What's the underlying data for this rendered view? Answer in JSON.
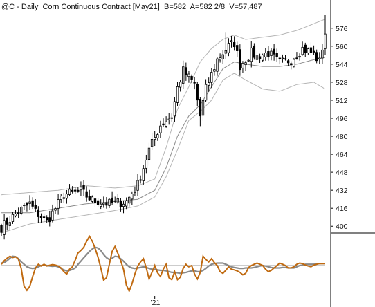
{
  "header": {
    "symbol": "@C",
    "interval": "Daily",
    "name": "Corn Continuous Contract [May21]",
    "bid": "B=582",
    "ask": "A=582 2/8",
    "volume": "V=57,487"
  },
  "colors": {
    "candle": "#000000",
    "band_mid": "#8a8a8a",
    "band_outer": "#b5b5b5",
    "osc_fast": "#c06a10",
    "osc_slow": "#8a8a8a",
    "osc_zero": "#9a9a9a",
    "frame": "#000000"
  },
  "chart_data": [
    {
      "type": "candlestick",
      "title": "",
      "xlabel": "",
      "ylabel": "",
      "y_axis_side": "right",
      "ylim": [
        394,
        590
      ],
      "ytick_labels": [
        "576",
        "560",
        "544",
        "528",
        "512",
        "496",
        "480",
        "464",
        "448",
        "432",
        "416",
        "400"
      ],
      "ytick_values": [
        576,
        560,
        544,
        528,
        512,
        496,
        480,
        464,
        448,
        432,
        416,
        400
      ],
      "x_tick_labels": [
        "'21"
      ],
      "x_tick_index": 54,
      "close_start": 399,
      "bars": 115,
      "close_anchors": [
        [
          0,
          399
        ],
        [
          6,
          413
        ],
        [
          10,
          420
        ],
        [
          12,
          413
        ],
        [
          16,
          404
        ],
        [
          22,
          428
        ],
        [
          28,
          431
        ],
        [
          32,
          423
        ],
        [
          38,
          420
        ],
        [
          44,
          422
        ],
        [
          48,
          437
        ],
        [
          52,
          468
        ],
        [
          56,
          490
        ],
        [
          60,
          498
        ],
        [
          62,
          523
        ],
        [
          64,
          538
        ],
        [
          68,
          526
        ],
        [
          70,
          498
        ],
        [
          72,
          522
        ],
        [
          76,
          548
        ],
        [
          80,
          560
        ],
        [
          82,
          563
        ],
        [
          84,
          543
        ],
        [
          88,
          554
        ],
        [
          90,
          551
        ],
        [
          94,
          554
        ],
        [
          98,
          545
        ],
        [
          102,
          548
        ],
        [
          106,
          558
        ],
        [
          110,
          553
        ],
        [
          112,
          546
        ],
        [
          114,
          572
        ]
      ],
      "wick_extremes": [
        {
          "index": 114,
          "high": 588
        },
        {
          "index": 79,
          "high": 572
        },
        {
          "index": 70,
          "low": 489
        }
      ],
      "bands": {
        "mid_offset_start": -14,
        "outer_offset_start": 40,
        "inner_points": [
          [
            0,
            394
          ],
          [
            10,
            402
          ],
          [
            20,
            406
          ],
          [
            30,
            410
          ],
          [
            40,
            414
          ],
          [
            48,
            418
          ],
          [
            54,
            426
          ],
          [
            58,
            444
          ],
          [
            62,
            468
          ],
          [
            66,
            494
          ],
          [
            70,
            502
          ],
          [
            74,
            512
          ],
          [
            78,
            530
          ],
          [
            82,
            536
          ],
          [
            86,
            530
          ],
          [
            92,
            522
          ],
          [
            98,
            520
          ],
          [
            104,
            526
          ],
          [
            110,
            528
          ],
          [
            114,
            522
          ]
        ],
        "mid_points": [
          [
            0,
            412
          ],
          [
            10,
            412
          ],
          [
            20,
            416
          ],
          [
            30,
            420
          ],
          [
            40,
            422
          ],
          [
            48,
            424
          ],
          [
            54,
            432
          ],
          [
            58,
            452
          ],
          [
            62,
            480
          ],
          [
            66,
            498
          ],
          [
            70,
            508
          ],
          [
            74,
            524
          ],
          [
            78,
            540
          ],
          [
            82,
            546
          ],
          [
            86,
            544
          ],
          [
            92,
            542
          ],
          [
            98,
            542
          ],
          [
            104,
            544
          ],
          [
            110,
            548
          ],
          [
            114,
            550
          ]
        ],
        "outer_points": [
          [
            0,
            428
          ],
          [
            10,
            430
          ],
          [
            20,
            432
          ],
          [
            30,
            436
          ],
          [
            40,
            434
          ],
          [
            48,
            436
          ],
          [
            54,
            442
          ],
          [
            58,
            470
          ],
          [
            62,
            504
          ],
          [
            66,
            524
          ],
          [
            70,
            546
          ],
          [
            74,
            558
          ],
          [
            78,
            566
          ],
          [
            82,
            570
          ],
          [
            86,
            566
          ],
          [
            92,
            568
          ],
          [
            98,
            570
          ],
          [
            104,
            574
          ],
          [
            110,
            580
          ],
          [
            114,
            584
          ]
        ]
      }
    },
    {
      "type": "line",
      "title": "",
      "xlabel": "",
      "ylabel": "",
      "ylim": [
        -1.25,
        1.25
      ],
      "zero_line": 0,
      "series": [
        {
          "key": "fast",
          "values": [
            0.05,
            0.2,
            0.3,
            0.38,
            0.33,
            0.36,
            0.26,
            -0.12,
            -0.85,
            -1.02,
            -0.85,
            -0.45,
            -0.1,
            0.05,
            -0.02,
            0.05,
            -0.02,
            0.01,
            0.04,
            0.02,
            -0.02,
            -0.1,
            -0.25,
            -0.35,
            -0.15,
            -0.05,
            0.22,
            0.52,
            0.62,
            0.75,
            1.0,
            1.2,
            1.0,
            0.7,
            0.35,
            -0.1,
            -0.6,
            -0.5,
            0.05,
            0.58,
            0.78,
            0.5,
            0.2,
            -0.15,
            -0.8,
            -1.05,
            -0.75,
            -0.35,
            -0.02,
            0.15,
            0.28,
            -0.1,
            -0.55,
            -0.28,
            0.0,
            -0.3,
            -0.45,
            -0.15,
            0.05,
            -0.5,
            -0.58,
            -0.25,
            -0.58,
            -0.48,
            -0.12,
            0.05,
            -0.05,
            0.0,
            -0.35,
            -0.55,
            -0.28,
            0.38,
            0.25,
            0.15,
            0.28,
            0.12,
            0.0,
            -0.25,
            -0.32,
            -0.2,
            -0.05,
            -0.15,
            -0.18,
            -0.22,
            -0.28,
            -0.38,
            -0.32,
            -0.08,
            0.0,
            0.05,
            0.1,
            0.05,
            0.0,
            -0.15,
            -0.25,
            -0.2,
            -0.1,
            0.0,
            0.1,
            0.05,
            0.0,
            -0.1,
            -0.1,
            -0.05,
            0.05,
            0.1,
            0.08,
            0.02,
            -0.02,
            -0.05,
            0.02,
            0.05,
            0.08,
            0.08,
            0.08
          ]
        },
        {
          "key": "slow",
          "values": [
            0.1,
            0.12,
            0.2,
            0.3,
            0.38,
            0.36,
            0.28,
            0.15,
            0.05,
            -0.05,
            -0.1,
            -0.12,
            -0.1,
            -0.05,
            0.0,
            0.02,
            0.0,
            -0.02,
            -0.03,
            -0.02,
            -0.05,
            -0.12,
            -0.18,
            -0.22,
            -0.2,
            -0.16,
            -0.1,
            0.05,
            0.18,
            0.32,
            0.45,
            0.58,
            0.68,
            0.75,
            0.72,
            0.62,
            0.45,
            0.32,
            0.25,
            0.3,
            0.38,
            0.36,
            0.28,
            0.18,
            0.05,
            -0.05,
            -0.1,
            -0.12,
            -0.1,
            -0.08,
            -0.05,
            -0.08,
            -0.12,
            -0.15,
            -0.15,
            -0.18,
            -0.2,
            -0.2,
            -0.22,
            -0.25,
            -0.28,
            -0.28,
            -0.3,
            -0.32,
            -0.3,
            -0.28,
            -0.25,
            -0.22,
            -0.22,
            -0.25,
            -0.25,
            -0.2,
            -0.12,
            -0.02,
            0.05,
            0.08,
            0.1,
            0.1,
            0.1,
            0.05,
            0.0,
            -0.05,
            -0.08,
            -0.1,
            -0.12,
            -0.12,
            -0.1,
            -0.1,
            -0.1,
            -0.08,
            -0.05,
            -0.02,
            0.0,
            -0.02,
            -0.05,
            -0.08,
            -0.1,
            -0.1,
            -0.1,
            -0.08,
            -0.08,
            -0.1,
            -0.1,
            -0.1,
            -0.05,
            0.0,
            0.02,
            0.05,
            0.05,
            0.05,
            0.05,
            0.08,
            0.08,
            0.08,
            0.08
          ]
        }
      ]
    }
  ]
}
